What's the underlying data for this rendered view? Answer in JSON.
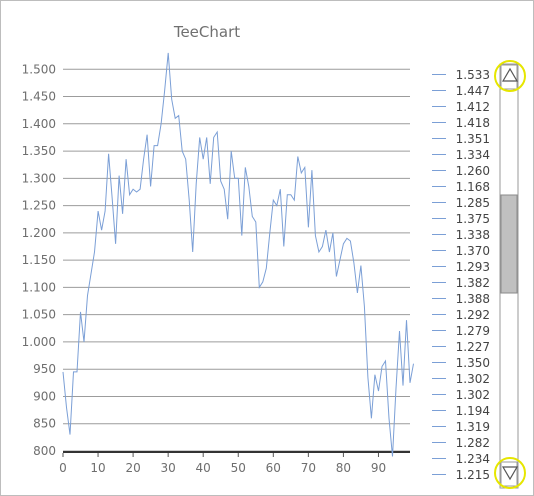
{
  "chart_data": {
    "type": "line",
    "title": "TeeChart",
    "xlabel": "",
    "ylabel": "",
    "xlim": [
      0,
      99
    ],
    "ylim": [
      800,
      1550
    ],
    "x_ticks": [
      0,
      10,
      20,
      30,
      40,
      50,
      60,
      70,
      80,
      90
    ],
    "y_ticks": [
      "800",
      "850",
      "900",
      "950",
      "1.000",
      "1.050",
      "1.100",
      "1.150",
      "1.200",
      "1.250",
      "1.300",
      "1.350",
      "1.400",
      "1.450",
      "1.500"
    ],
    "y_tick_values": [
      800,
      850,
      900,
      950,
      1000,
      1050,
      1100,
      1150,
      1200,
      1250,
      1300,
      1350,
      1400,
      1450,
      1500
    ],
    "grid": "horizontal",
    "line_color": "#7b9fd6",
    "series": [
      {
        "values": [
          945,
          880,
          830,
          945,
          945,
          1055,
          1000,
          1085,
          1125,
          1165,
          1240,
          1205,
          1240,
          1345,
          1265,
          1180,
          1305,
          1235,
          1335,
          1270,
          1280,
          1275,
          1280,
          1335,
          1380,
          1285,
          1360,
          1360,
          1400,
          1460,
          1530,
          1445,
          1410,
          1415,
          1350,
          1335,
          1260,
          1165,
          1290,
          1375,
          1335,
          1375,
          1290,
          1375,
          1385,
          1295,
          1280,
          1225,
          1350,
          1300,
          1300,
          1195,
          1320,
          1285,
          1230,
          1220,
          1100,
          1110,
          1135,
          1200,
          1260,
          1250,
          1280,
          1175,
          1270,
          1270,
          1260,
          1340,
          1310,
          1320,
          1210,
          1315,
          1195,
          1165,
          1175,
          1205,
          1165,
          1200,
          1120,
          1150,
          1180,
          1190,
          1185,
          1145,
          1090,
          1140,
          1065,
          935,
          860,
          940,
          910,
          955,
          965,
          860,
          790,
          915,
          1020,
          920,
          1040,
          925,
          960
        ]
      }
    ],
    "legend": {
      "placement": "right",
      "entries": [
        "1.533",
        "1.447",
        "1.412",
        "1.418",
        "1.351",
        "1.334",
        "1.260",
        "1.168",
        "1.285",
        "1.375",
        "1.338",
        "1.370",
        "1.293",
        "1.382",
        "1.388",
        "1.292",
        "1.279",
        "1.227",
        "1.350",
        "1.302",
        "1.302",
        "1.194",
        "1.319",
        "1.282",
        "1.234",
        "1.215"
      ]
    },
    "scrollbar": {
      "up_icon": "triangle-up-icon",
      "down_icon": "triangle-down-icon",
      "highlight_color": "#e6e600",
      "thumb_color": "#bfbfbf",
      "thumb_position_fraction": 0.38
    }
  }
}
